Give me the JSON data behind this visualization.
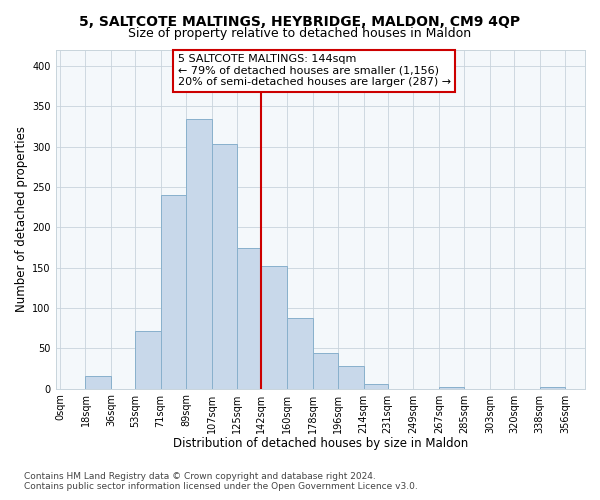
{
  "title": "5, SALTCOTE MALTINGS, HEYBRIDGE, MALDON, CM9 4QP",
  "subtitle": "Size of property relative to detached houses in Maldon",
  "xlabel": "Distribution of detached houses by size in Maldon",
  "ylabel": "Number of detached properties",
  "bar_left_edges": [
    0,
    18,
    36,
    53,
    71,
    89,
    107,
    125,
    142,
    160,
    178,
    196,
    214,
    231,
    249,
    267,
    285,
    303,
    320,
    338
  ],
  "bar_widths": [
    18,
    18,
    17,
    18,
    18,
    18,
    18,
    17,
    18,
    18,
    18,
    18,
    17,
    18,
    18,
    18,
    18,
    17,
    18,
    18
  ],
  "bar_heights": [
    0,
    16,
    0,
    72,
    240,
    334,
    304,
    174,
    152,
    88,
    44,
    28,
    6,
    0,
    0,
    2,
    0,
    0,
    0,
    2
  ],
  "bar_color": "#c8d8ea",
  "bar_edgecolor": "#88b0cc",
  "vline_x": 142,
  "vline_color": "#cc0000",
  "annotation_text": "5 SALTCOTE MALTINGS: 144sqm\n← 79% of detached houses are smaller (1,156)\n20% of semi-detached houses are larger (287) →",
  "annotation_box_color": "#ffffff",
  "annotation_box_edgecolor": "#cc0000",
  "ylim": [
    0,
    420
  ],
  "yticks": [
    0,
    50,
    100,
    150,
    200,
    250,
    300,
    350,
    400
  ],
  "xtick_labels": [
    "0sqm",
    "18sqm",
    "36sqm",
    "53sqm",
    "71sqm",
    "89sqm",
    "107sqm",
    "125sqm",
    "142sqm",
    "160sqm",
    "178sqm",
    "196sqm",
    "214sqm",
    "231sqm",
    "249sqm",
    "267sqm",
    "285sqm",
    "303sqm",
    "320sqm",
    "338sqm",
    "356sqm"
  ],
  "xtick_positions": [
    0,
    18,
    36,
    53,
    71,
    89,
    107,
    125,
    142,
    160,
    178,
    196,
    214,
    231,
    249,
    267,
    285,
    303,
    320,
    338,
    356
  ],
  "footnote1": "Contains HM Land Registry data © Crown copyright and database right 2024.",
  "footnote2": "Contains public sector information licensed under the Open Government Licence v3.0.",
  "background_color": "#ffffff",
  "plot_background_color": "#f4f8fb",
  "grid_color": "#c8d4dc",
  "title_fontsize": 10,
  "subtitle_fontsize": 9,
  "xlabel_fontsize": 8.5,
  "ylabel_fontsize": 8.5,
  "tick_fontsize": 7,
  "annotation_fontsize": 8,
  "footnote_fontsize": 6.5
}
